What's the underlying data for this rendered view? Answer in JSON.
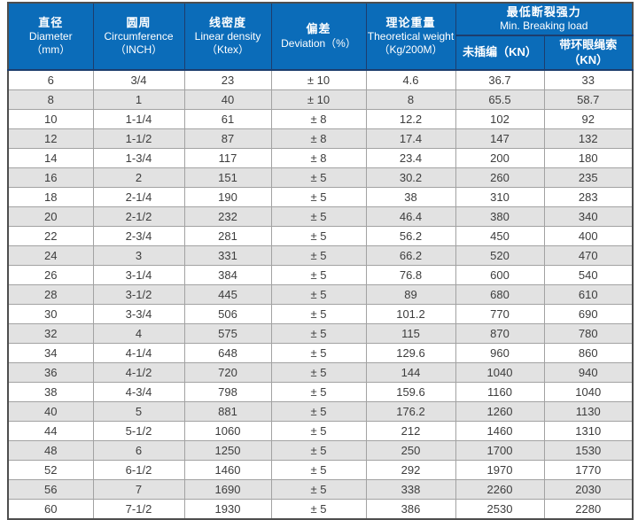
{
  "colors": {
    "header_background": "#0b6cb9",
    "header_text": "#ffffff",
    "header_divider": "#1d3d6d",
    "row_stripe": "#e2e2e2",
    "cell_border": "#a2a2a2",
    "outer_border": "#4e4e4e",
    "body_text": "#3d3d3d"
  },
  "table": {
    "header": {
      "diameter": {
        "zh": "直径",
        "en": "Diameter",
        "unit": "（mm）"
      },
      "circumference": {
        "zh": "圆周",
        "en": "Circumference",
        "unit": "（INCH）"
      },
      "density": {
        "zh": "线密度",
        "en": "Linear density",
        "unit": "（Ktex）"
      },
      "deviation": {
        "zh": "偏差",
        "en": "Deviation（%）"
      },
      "weight": {
        "zh": "理论重量",
        "en": "Theoretical weight",
        "unit": "（Kg/200M）"
      },
      "breaking": {
        "zh": "最低断裂强力",
        "en": "Min. Breaking load",
        "sub_unspliced": "未插编（KN）",
        "sub_eye_splice": "带环眼绳索（KN）"
      }
    },
    "rows": [
      [
        "6",
        "3/4",
        "23",
        "± 10",
        "4.6",
        "36.7",
        "33"
      ],
      [
        "8",
        "1",
        "40",
        "± 10",
        "8",
        "65.5",
        "58.7"
      ],
      [
        "10",
        "1-1/4",
        "61",
        "± 8",
        "12.2",
        "102",
        "92"
      ],
      [
        "12",
        "1-1/2",
        "87",
        "± 8",
        "17.4",
        "147",
        "132"
      ],
      [
        "14",
        "1-3/4",
        "117",
        "± 8",
        "23.4",
        "200",
        "180"
      ],
      [
        "16",
        "2",
        "151",
        "± 5",
        "30.2",
        "260",
        "235"
      ],
      [
        "18",
        "2-1/4",
        "190",
        "± 5",
        "38",
        "310",
        "283"
      ],
      [
        "20",
        "2-1/2",
        "232",
        "± 5",
        "46.4",
        "380",
        "340"
      ],
      [
        "22",
        "2-3/4",
        "281",
        "± 5",
        "56.2",
        "450",
        "400"
      ],
      [
        "24",
        "3",
        "331",
        "± 5",
        "66.2",
        "520",
        "470"
      ],
      [
        "26",
        "3-1/4",
        "384",
        "± 5",
        "76.8",
        "600",
        "540"
      ],
      [
        "28",
        "3-1/2",
        "445",
        "± 5",
        "89",
        "680",
        "610"
      ],
      [
        "30",
        "3-3/4",
        "506",
        "± 5",
        "101.2",
        "770",
        "690"
      ],
      [
        "32",
        "4",
        "575",
        "± 5",
        "115",
        "870",
        "780"
      ],
      [
        "34",
        "4-1/4",
        "648",
        "± 5",
        "129.6",
        "960",
        "860"
      ],
      [
        "36",
        "4-1/2",
        "720",
        "± 5",
        "144",
        "1040",
        "940"
      ],
      [
        "38",
        "4-3/4",
        "798",
        "± 5",
        "159.6",
        "1160",
        "1040"
      ],
      [
        "40",
        "5",
        "881",
        "± 5",
        "176.2",
        "1260",
        "1130"
      ],
      [
        "44",
        "5-1/2",
        "1060",
        "± 5",
        "212",
        "1460",
        "1310"
      ],
      [
        "48",
        "6",
        "1250",
        "± 5",
        "250",
        "1700",
        "1530"
      ],
      [
        "52",
        "6-1/2",
        "1460",
        "± 5",
        "292",
        "1970",
        "1770"
      ],
      [
        "56",
        "7",
        "1690",
        "± 5",
        "338",
        "2260",
        "2030"
      ],
      [
        "60",
        "7-1/2",
        "1930",
        "± 5",
        "386",
        "2530",
        "2280"
      ]
    ]
  }
}
